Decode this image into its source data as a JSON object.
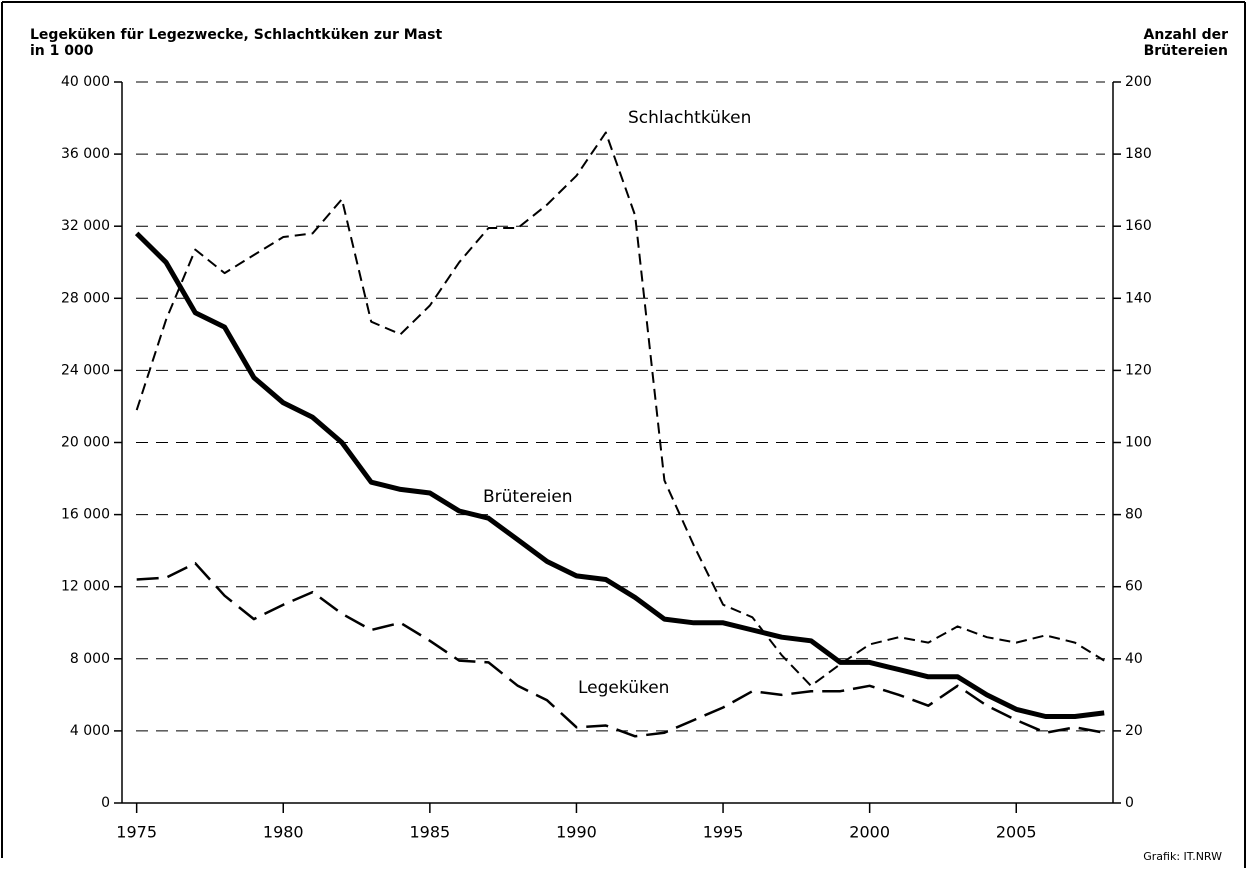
{
  "chart_data": {
    "type": "line",
    "ylabel": [
      "Legeküken für Legezwecke, Schlachtküken zur Mast",
      "in 1 000"
    ],
    "y2label": [
      "Anzahl der",
      "Brütereien"
    ],
    "source": "Grafik: IT.NRW",
    "x": [
      1975,
      1976,
      1977,
      1978,
      1979,
      1980,
      1981,
      1982,
      1983,
      1984,
      1985,
      1986,
      1987,
      1988,
      1989,
      1990,
      1991,
      1992,
      1993,
      1994,
      1995,
      1996,
      1997,
      1998,
      1999,
      2000,
      2001,
      2002,
      2003,
      2004,
      2005,
      2006,
      2007,
      2008
    ],
    "xlim": [
      1974.5,
      2008.3
    ],
    "xticks": [
      1975,
      1980,
      1985,
      1990,
      1995,
      2000,
      2005
    ],
    "ylim": [
      0,
      40000
    ],
    "yticks": [
      0,
      {
        "value": 4000,
        "label": "4 000"
      },
      {
        "value": 8000,
        "label": "8 000"
      },
      {
        "value": 12000,
        "label": "12 000"
      },
      {
        "value": 16000,
        "label": "16 000"
      },
      {
        "value": 20000,
        "label": "20 000"
      },
      {
        "value": 24000,
        "label": "24 000"
      },
      {
        "value": 28000,
        "label": "28 000"
      },
      {
        "value": 32000,
        "label": "32 000"
      },
      {
        "value": 36000,
        "label": "36 000"
      },
      {
        "value": 40000,
        "label": "40 000"
      }
    ],
    "y2lim": [
      0,
      200
    ],
    "y2ticks": [
      0,
      20,
      40,
      60,
      80,
      100,
      120,
      140,
      160,
      180,
      200
    ],
    "grid": true,
    "series": [
      {
        "name": "Schlachtküken",
        "color": "#000000",
        "line_style": "dashed",
        "values": [
          21800,
          26800,
          30700,
          29400,
          30400,
          31400,
          31600,
          33500,
          26700,
          26000,
          27600,
          30000,
          31900,
          31900,
          33200,
          34800,
          37200,
          32600,
          17900,
          14300,
          11000,
          10300,
          8200,
          6500,
          7700,
          8800,
          9200,
          8900,
          9800,
          9200,
          8900,
          9300,
          8900,
          7900
        ]
      },
      {
        "name": "Brütereien",
        "color": "#000000",
        "line_style": "solid",
        "axis": "y2",
        "values": [
          158,
          150,
          136,
          132,
          118,
          111,
          107,
          100,
          89,
          87,
          86,
          81,
          79,
          73,
          67,
          63,
          62,
          57,
          51,
          50,
          50,
          48,
          46,
          45,
          39,
          39,
          37,
          35,
          35,
          30,
          26,
          24,
          24,
          25
        ]
      },
      {
        "name": "Legeküken",
        "color": "#000000",
        "line_style": "long-dashed",
        "values": [
          12400,
          12500,
          13300,
          11500,
          10200,
          11000,
          11700,
          10500,
          9600,
          10000,
          9000,
          7900,
          7800,
          6500,
          5700,
          4200,
          4300,
          3700,
          3900,
          4600,
          5300,
          6200,
          6000,
          6200,
          6200,
          6500,
          6000,
          5400,
          6500,
          5400,
          4600,
          3900,
          4200,
          3900
        ]
      }
    ]
  }
}
